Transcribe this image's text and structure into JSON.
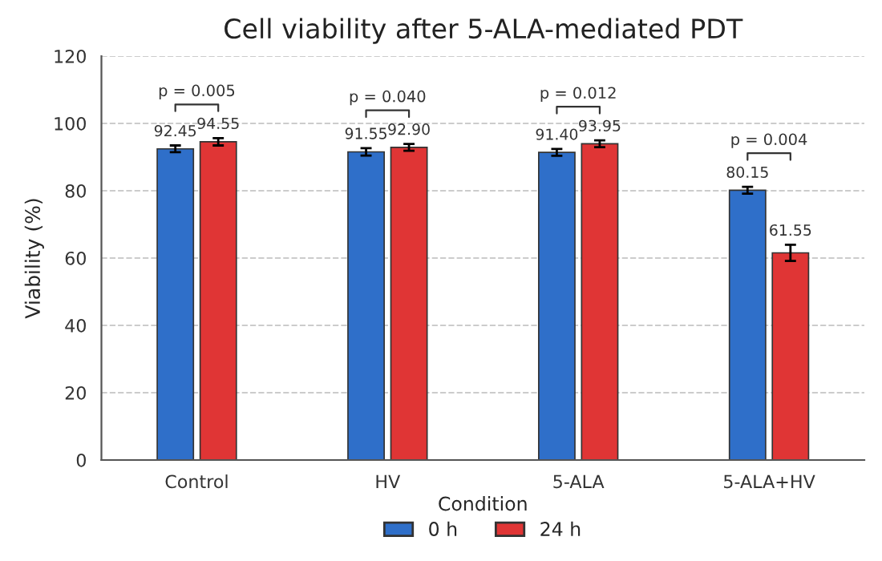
{
  "chart_data": {
    "type": "bar",
    "title": "Cell viability after 5-ALA-mediated PDT",
    "xlabel": "Condition",
    "ylabel": "Viability (%)",
    "categories": [
      "Control",
      "HV",
      "5-ALA",
      "5-ALA+HV"
    ],
    "series": [
      {
        "name": "0 h",
        "color": "#2f6fc9",
        "values": [
          92.45,
          91.55,
          91.4,
          80.15
        ],
        "errors": [
          1.0,
          1.1,
          1.0,
          1.0
        ],
        "value_labels": [
          "92.45",
          "91.55",
          "91.40",
          "80.15"
        ]
      },
      {
        "name": "24 h",
        "color": "#e03535",
        "values": [
          94.55,
          92.9,
          93.95,
          61.55
        ],
        "errors": [
          1.1,
          1.0,
          1.0,
          2.4
        ],
        "value_labels": [
          "94.55",
          "92.90",
          "93.95",
          "61.55"
        ]
      }
    ],
    "ylim": [
      0,
      120
    ],
    "yticks": [
      0,
      20,
      40,
      60,
      80,
      100,
      120
    ],
    "grid": "y",
    "legend": "bottom",
    "annotations": [
      "p = 0.005",
      "p = 0.040",
      "p = 0.012",
      "p = 0.004"
    ]
  }
}
